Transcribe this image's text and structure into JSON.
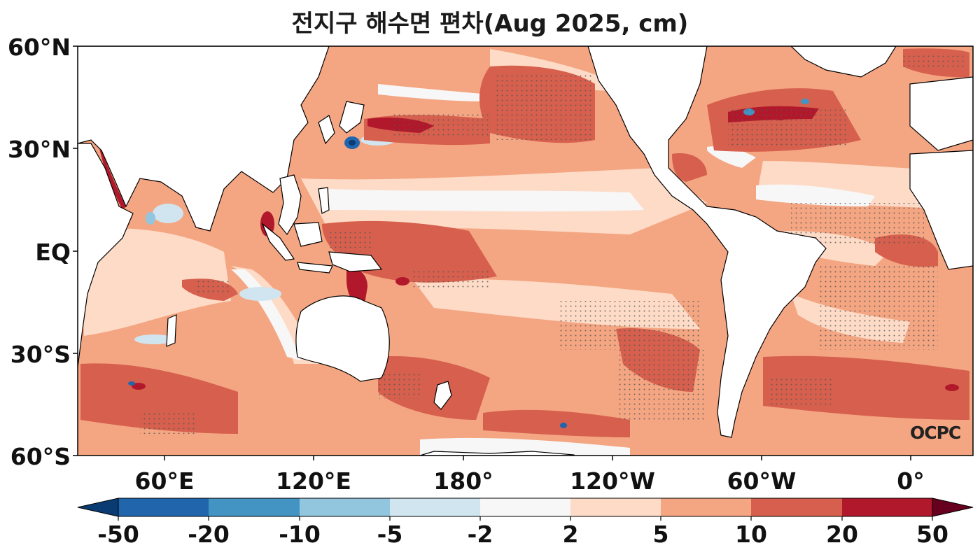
{
  "title": "전지구 해수면 편차(Aug 2025, cm)",
  "logo_text": "OCPC",
  "lat_labels": [
    "60°N",
    "30°N",
    "EQ",
    "30°S",
    "60°S"
  ],
  "lon_labels": [
    "60°E",
    "120°E",
    "180°",
    "120°W",
    "60°W",
    "0°"
  ],
  "colorbar": {
    "tick_labels": [
      "-50",
      "-20",
      "-10",
      "-5",
      "-2",
      "2",
      "5",
      "10",
      "20",
      "50"
    ],
    "colors": [
      "#0b3b73",
      "#2166ac",
      "#4393c3",
      "#92c5de",
      "#d1e5f0",
      "#f7f7f7",
      "#fddbc7",
      "#f4a582",
      "#d6604d",
      "#b2182b",
      "#67001f"
    ],
    "extend": "both"
  },
  "map": {
    "variable": "sea level anomaly",
    "units": "cm",
    "projection": "equirectangular",
    "lon_range": [
      25,
      385
    ],
    "lat_range": [
      -60,
      60
    ],
    "stippling": true
  }
}
